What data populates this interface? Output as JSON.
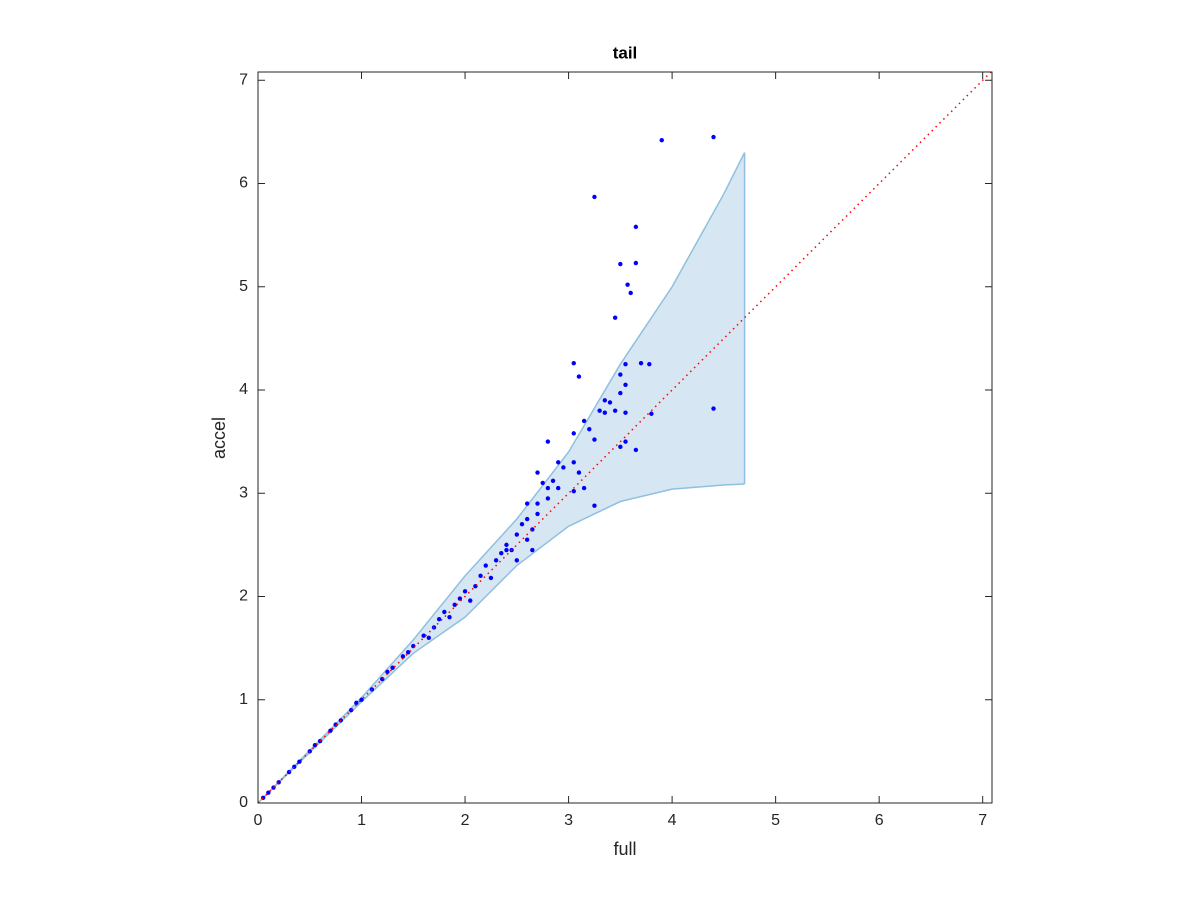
{
  "chart_data": {
    "type": "scatter",
    "title": "tail",
    "xlabel": "full",
    "ylabel": "accel",
    "xlim": [
      0,
      7.09
    ],
    "ylim": [
      0,
      7.08
    ],
    "xticks": [
      0,
      1,
      2,
      3,
      4,
      5,
      6,
      7
    ],
    "yticks": [
      0,
      1,
      2,
      3,
      4,
      5,
      6,
      7
    ],
    "grid": false,
    "points": {
      "color": "#0000ff",
      "x": [
        3.9,
        4.4,
        3.25,
        3.65,
        3.5,
        3.65,
        3.57,
        3.6,
        3.45,
        3.05,
        3.55,
        3.7,
        3.78,
        3.1,
        3.5,
        3.55,
        3.5,
        3.4,
        3.35,
        3.3,
        3.45,
        3.55,
        3.8,
        4.4,
        3.35,
        3.2,
        3.15,
        2.8,
        3.05,
        3.25,
        3.5,
        3.55,
        3.65,
        2.9,
        2.95,
        3.05,
        3.1,
        2.7,
        2.75,
        2.8,
        2.9,
        3.05,
        3.15,
        3.25,
        2.6,
        2.6,
        2.55,
        2.65,
        2.5,
        2.4,
        2.45,
        2.7,
        2.8,
        2.85,
        2.6,
        2.4,
        2.35,
        2.3,
        2.2,
        2.15,
        2.1,
        2.0,
        1.95,
        1.9,
        1.8,
        1.75,
        1.7,
        1.6,
        1.5,
        1.4,
        1.3,
        1.2,
        1.1,
        1.0,
        0.9,
        0.8,
        0.7,
        0.6,
        0.5,
        0.4,
        0.3,
        0.2,
        0.1,
        0.05,
        2.25,
        2.05,
        1.85,
        2.5,
        2.65,
        2.7,
        1.65,
        1.45,
        1.25,
        0.95,
        0.75,
        0.55,
        0.35,
        0.15
      ],
      "y": [
        6.42,
        6.45,
        5.87,
        5.58,
        5.22,
        5.23,
        5.02,
        4.94,
        4.7,
        4.26,
        4.25,
        4.26,
        4.25,
        4.13,
        4.15,
        4.05,
        3.97,
        3.88,
        3.9,
        3.8,
        3.8,
        3.78,
        3.77,
        3.82,
        3.78,
        3.62,
        3.7,
        3.5,
        3.58,
        3.52,
        3.45,
        3.5,
        3.42,
        3.3,
        3.25,
        3.3,
        3.2,
        3.2,
        3.1,
        3.05,
        3.05,
        3.02,
        3.05,
        2.88,
        2.9,
        2.75,
        2.7,
        2.65,
        2.6,
        2.5,
        2.45,
        2.8,
        2.95,
        3.12,
        2.55,
        2.45,
        2.42,
        2.35,
        2.3,
        2.2,
        2.1,
        2.05,
        1.98,
        1.92,
        1.85,
        1.78,
        1.7,
        1.62,
        1.52,
        1.42,
        1.31,
        1.2,
        1.1,
        1.0,
        0.9,
        0.8,
        0.7,
        0.6,
        0.5,
        0.4,
        0.3,
        0.2,
        0.1,
        0.05,
        2.18,
        1.96,
        1.8,
        2.35,
        2.45,
        2.9,
        1.6,
        1.46,
        1.27,
        0.97,
        0.76,
        0.56,
        0.35,
        0.15
      ]
    },
    "band": {
      "fill": "#d6e6f2",
      "edge": "#8fc0df",
      "x": [
        0,
        1,
        1.5,
        2,
        2.5,
        3,
        3.5,
        4,
        4.5,
        4.7
      ],
      "upper": [
        0,
        1.02,
        1.58,
        2.2,
        2.75,
        3.4,
        4.25,
        5.0,
        5.9,
        6.3
      ],
      "lower": [
        0,
        0.98,
        1.45,
        1.8,
        2.3,
        2.68,
        2.92,
        3.04,
        3.08,
        3.09
      ]
    },
    "reference_line": {
      "color": "#ff0000",
      "style": "dotted",
      "x": [
        0,
        7.09
      ],
      "y": [
        0,
        7.09
      ]
    }
  }
}
